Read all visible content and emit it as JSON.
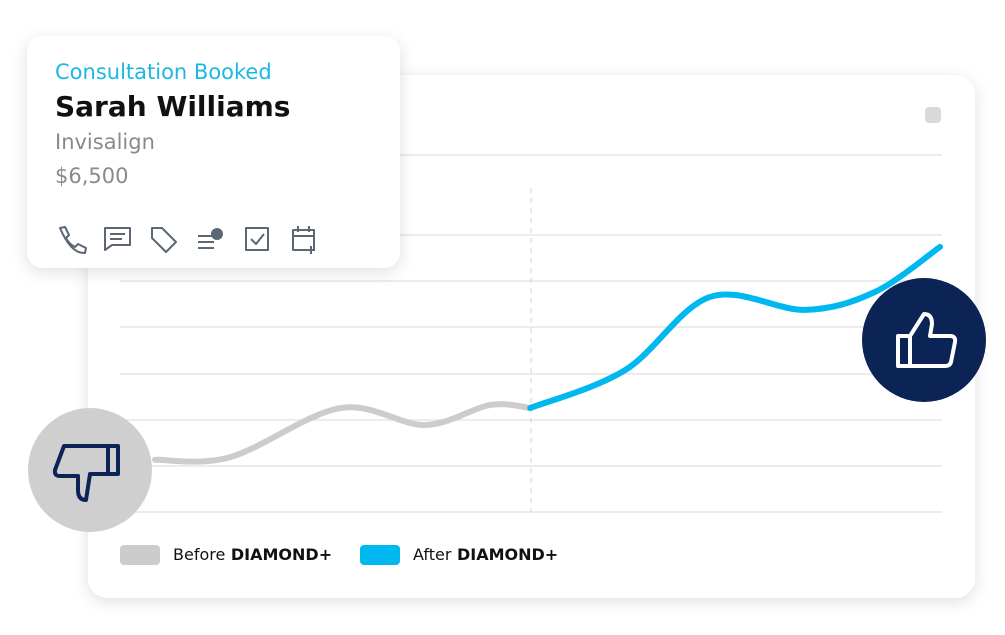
{
  "card": {
    "status": "Consultation Booked",
    "name": "Sarah Williams",
    "treatment": "Invisalign",
    "amount": "$6,500"
  },
  "chart_data": {
    "type": "line",
    "xlim": [
      0,
      10
    ],
    "ylim": [
      0,
      8
    ],
    "series": [
      {
        "name": "Before DIAMOND+",
        "color": "#cccccc",
        "x": [
          0,
          0.96,
          2.36,
          3.44,
          4.27,
          4.78
        ],
        "values": [
          1.17,
          1.23,
          2.33,
          1.95,
          2.4,
          2.33
        ]
      },
      {
        "name": "After DIAMOND+",
        "color": "#00b8f0",
        "x": [
          4.78,
          5.99,
          7.07,
          8.28,
          9.17,
          10
        ],
        "values": [
          2.33,
          3.18,
          4.82,
          4.53,
          4.93,
          5.94
        ]
      }
    ]
  }
}
